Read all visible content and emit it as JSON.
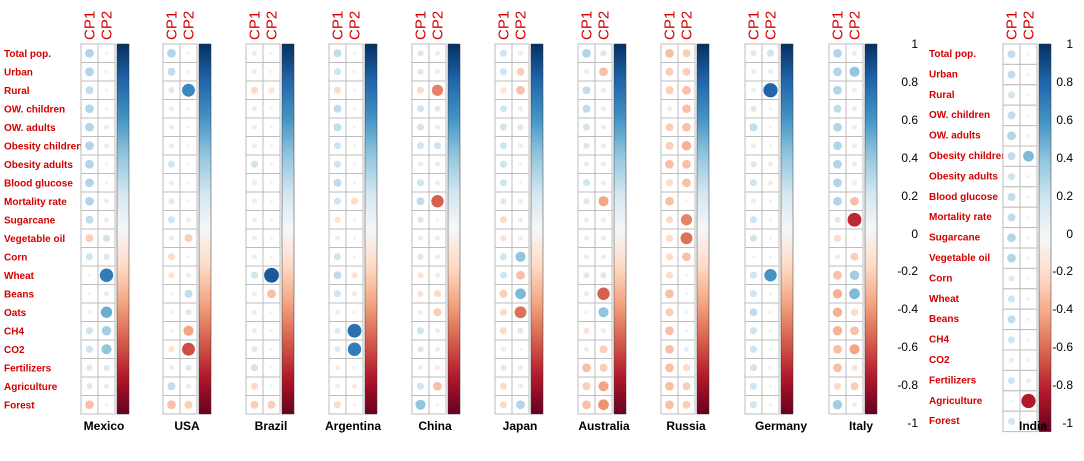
{
  "chart_data": {
    "type": "correlation-matrix",
    "components": [
      "CP1",
      "CP2"
    ],
    "variables_left": [
      "Total pop.",
      "Urban",
      "Rural",
      "OW. children",
      "OW. adults",
      "Obesity children",
      "Obesity adults",
      "Blood glucose",
      "Mortality rate",
      "Sugarcane",
      "Vegetable oil",
      "Corn",
      "Wheat",
      "Beans",
      "Oats",
      "CH4",
      "CO2",
      "Fertilizers",
      "Agriculture",
      "Forest"
    ],
    "variables_right": [
      "Total pop.",
      "Urban",
      "Rural",
      "OW. children",
      "OW. adults",
      "Obesity children",
      "Obesity adults",
      "Blood glucose",
      "Mortality rate",
      "Sugarcane",
      "Vegetable oil",
      "Corn",
      "Wheat",
      "Beans",
      "CH4",
      "CO2",
      "Fertilizers",
      "Agriculture",
      "Forest"
    ],
    "colorbar": {
      "min": -1,
      "max": 1,
      "ticks": [
        "1",
        "0.8",
        "0.6",
        "0.4",
        "0.2",
        "0",
        "-0.2",
        "-0.4",
        "-0.6",
        "-0.8",
        "-1"
      ],
      "high_color": "#053061",
      "mid_color": "#f7f7f7",
      "low_color": "#67001f"
    },
    "panels": [
      {
        "country": "Mexico",
        "CP1": [
          0.3,
          0.3,
          0.25,
          0.3,
          0.3,
          0.3,
          0.3,
          0.3,
          0.3,
          0.25,
          -0.25,
          0.2,
          0.05,
          -0.05,
          -0.05,
          0.2,
          0.2,
          0.15,
          0.15,
          -0.3
        ],
        "CP2": [
          0.05,
          0.05,
          0.05,
          0.05,
          0.1,
          0.1,
          0.05,
          -0.05,
          0.1,
          0.1,
          0.2,
          0.15,
          0.7,
          0.1,
          0.5,
          0.35,
          0.4,
          0.15,
          0.1,
          0.05
        ]
      },
      {
        "country": "USA",
        "CP1": [
          0.3,
          0.25,
          0.15,
          0.1,
          0.1,
          0.1,
          0.2,
          0.1,
          0.15,
          0.2,
          -0.1,
          -0.2,
          -0.15,
          0.05,
          0.05,
          0.05,
          -0.15,
          0.1,
          0.25,
          -0.3
        ],
        "CP2": [
          0.05,
          0.05,
          0.65,
          0.05,
          0.05,
          0.05,
          0.05,
          0.05,
          0.05,
          0.1,
          -0.25,
          0.05,
          0.1,
          0.25,
          0.15,
          -0.4,
          -0.65,
          0.15,
          0.1,
          -0.25
        ]
      },
      {
        "country": "Brazil",
        "CP1": [
          0.1,
          0.1,
          -0.2,
          0.1,
          0.1,
          0.1,
          0.2,
          0.1,
          0.1,
          -0.1,
          0.1,
          0.1,
          0.2,
          -0.1,
          0.1,
          0.1,
          0.15,
          0.2,
          -0.2,
          -0.25
        ],
        "CP2": [
          -0.05,
          -0.05,
          -0.15,
          0.05,
          0.05,
          0.05,
          0.05,
          0.05,
          0.05,
          0.05,
          -0.05,
          -0.05,
          0.85,
          -0.3,
          0.05,
          0.05,
          0.05,
          0.05,
          0.05,
          -0.25
        ]
      },
      {
        "country": "Argentina",
        "CP1": [
          0.25,
          0.2,
          -0.2,
          0.25,
          0.25,
          0.2,
          0.2,
          0.25,
          0.2,
          -0.15,
          -0.1,
          0.2,
          0.25,
          0.2,
          -0.1,
          0.15,
          0.15,
          -0.1,
          -0.1,
          -0.2
        ],
        "CP2": [
          0.05,
          -0.05,
          0.05,
          0.05,
          0.05,
          0.05,
          0.05,
          0.05,
          -0.2,
          -0.05,
          0.05,
          0.05,
          -0.15,
          -0.1,
          0.05,
          0.75,
          0.7,
          0.05,
          -0.1,
          -0.05
        ]
      },
      {
        "country": "China",
        "CP1": [
          0.15,
          0.15,
          -0.2,
          0.2,
          0.2,
          0.2,
          0.1,
          0.2,
          0.25,
          0.15,
          0.1,
          0.15,
          -0.15,
          -0.15,
          -0.1,
          0.2,
          0.15,
          0.1,
          0.2,
          0.4
        ],
        "CP2": [
          0.1,
          0.1,
          -0.5,
          0.15,
          0.1,
          0.2,
          0.1,
          0.1,
          -0.6,
          -0.05,
          0.1,
          0.1,
          -0.1,
          -0.2,
          -0.25,
          0.1,
          -0.1,
          -0.1,
          -0.3,
          0.05
        ]
      },
      {
        "country": "Japan",
        "CP1": [
          0.2,
          0.2,
          -0.15,
          0.2,
          0.2,
          0.2,
          0.2,
          0.2,
          0.15,
          -0.2,
          -0.15,
          0.2,
          0.2,
          -0.25,
          -0.2,
          -0.2,
          -0.1,
          -0.15,
          -0.2,
          -0.2
        ],
        "CP2": [
          -0.1,
          -0.25,
          -0.3,
          -0.1,
          0.15,
          -0.1,
          -0.05,
          -0.05,
          -0.1,
          -0.1,
          -0.1,
          0.4,
          -0.3,
          0.45,
          -0.55,
          0.15,
          0.05,
          0.1,
          -0.1,
          0.3
        ]
      },
      {
        "country": "Australia",
        "CP1": [
          0.3,
          0.1,
          0.25,
          0.25,
          0.2,
          0.15,
          0.1,
          0.2,
          0.15,
          0.1,
          -0.1,
          -0.1,
          0.15,
          -0.1,
          0.05,
          -0.15,
          -0.1,
          -0.3,
          -0.25,
          -0.3
        ],
        "CP2": [
          0.15,
          -0.3,
          0.1,
          0.1,
          0.1,
          0.1,
          0.1,
          0.1,
          -0.4,
          0.1,
          0.1,
          0.1,
          0.15,
          -0.6,
          0.4,
          0.1,
          -0.25,
          -0.25,
          -0.4,
          -0.45
        ]
      },
      {
        "country": "Russia",
        "CP1": [
          -0.3,
          -0.25,
          -0.25,
          -0.1,
          -0.25,
          -0.25,
          -0.3,
          -0.2,
          -0.3,
          -0.2,
          -0.2,
          -0.2,
          -0.2,
          -0.3,
          -0.25,
          -0.3,
          -0.3,
          -0.3,
          -0.3,
          -0.3
        ],
        "CP2": [
          -0.25,
          -0.25,
          -0.3,
          -0.3,
          -0.3,
          -0.35,
          -0.3,
          -0.3,
          -0.05,
          -0.5,
          -0.55,
          -0.3,
          0.05,
          0.05,
          0.05,
          0.05,
          0.1,
          -0.2,
          -0.25,
          -0.25
        ]
      },
      {
        "country": "Germany",
        "CP1": [
          0.15,
          0.1,
          0.1,
          0.15,
          0.25,
          0.1,
          0.15,
          0.2,
          0.1,
          0.2,
          0.2,
          0.05,
          0.2,
          0.2,
          0.25,
          0.2,
          0.2,
          0.2,
          0.2,
          0.2
        ],
        "CP2": [
          0.2,
          0.1,
          0.8,
          0.05,
          0.05,
          0.05,
          -0.1,
          -0.1,
          0.05,
          0.05,
          0.05,
          0.05,
          0.6,
          0.05,
          0.05,
          0.05,
          0.05,
          0.05,
          0.05,
          0.05
        ]
      },
      {
        "country": "Italy",
        "CP1": [
          0.3,
          0.3,
          0.3,
          0.25,
          0.3,
          0.3,
          0.3,
          0.3,
          0.3,
          0.15,
          -0.2,
          -0.1,
          -0.3,
          -0.35,
          -0.35,
          -0.35,
          -0.3,
          -0.3,
          -0.2,
          0.35
        ],
        "CP2": [
          0.1,
          0.4,
          0.1,
          0.1,
          0.1,
          0.1,
          0.1,
          -0.1,
          -0.3,
          -0.75,
          0.05,
          -0.25,
          0.35,
          0.45,
          -0.2,
          -0.3,
          -0.4,
          -0.15,
          -0.25,
          -0.1
        ]
      },
      {
        "country": "India",
        "CP1": [
          0.25,
          0.25,
          0.2,
          0.25,
          0.3,
          0.25,
          0.2,
          0.25,
          0.25,
          0.3,
          0.3,
          0.15,
          0.2,
          0.25,
          0.2,
          0.1,
          0.2,
          0.05,
          0.2
        ],
        "CP2": [
          0.05,
          0.05,
          -0.05,
          0.05,
          -0.05,
          0.45,
          -0.05,
          -0.05,
          0.05,
          0.05,
          -0.05,
          0.05,
          0.05,
          0.05,
          0.05,
          0.05,
          0.1,
          -0.8,
          -0.05
        ]
      }
    ]
  }
}
